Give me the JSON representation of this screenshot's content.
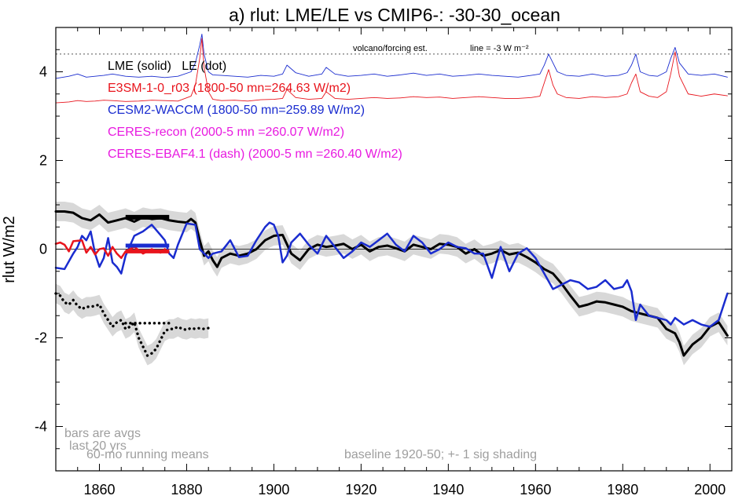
{
  "chart_data": {
    "type": "line",
    "title": "a) rlut: LME/LE vs CMIP6-: -30-30_ocean",
    "ylabel": "rlut W/m2",
    "xlabel": "",
    "xlim": [
      1850,
      2005
    ],
    "ylim": [
      -5,
      5
    ],
    "x_ticks": [
      1860,
      1880,
      1900,
      1920,
      1940,
      1960,
      1980,
      2000
    ],
    "y_ticks": [
      -4,
      -2,
      0,
      2,
      4
    ],
    "grid": false,
    "zero_line": 0,
    "reference_line": {
      "y": 4.4,
      "label": "volcano/forcing est.",
      "note": "line = -3 W m⁻²"
    },
    "legend": [
      {
        "text": "LME (solid)   LE (dot)",
        "color": "#000000"
      },
      {
        "text": "E3SM-1-0_r03 (1800-50 mn=264.63 W/m2)",
        "color": "#e8141c"
      },
      {
        "text": "CESM2-WACCM (1800-50 mn=259.89 W/m2)",
        "color": "#1a2ccf"
      },
      {
        "text": "CERES-recon (2000-5 mn =260.07 W/m2)",
        "color": "#e81ae0"
      },
      {
        "text": "CERES-EBAF4.1 (dash) (2000-5 mn =260.40 W/m2)",
        "color": "#e81ae0"
      }
    ],
    "annotations": [
      {
        "text": "bars are avgs",
        "color": "#9e9e9e"
      },
      {
        "text": "last 20 yrs",
        "color": "#9e9e9e"
      },
      {
        "text": "60-mo running means",
        "color": "#9e9e9e"
      },
      {
        "text": "baseline 1920-50; +- 1 sig shading",
        "color": "#9e9e9e"
      }
    ],
    "colors": {
      "black": "#000000",
      "red": "#e8141c",
      "blue": "#1a2ccf",
      "shade": "#d8d8d8",
      "annot": "#9e9e9e"
    },
    "series": [
      {
        "key": "forcing_blue",
        "color": "#1a2ccf",
        "width": 0.9,
        "x": [
          1850,
          1853,
          1855,
          1857,
          1859,
          1861,
          1863,
          1866,
          1869,
          1872,
          1875,
          1878,
          1881,
          1882,
          1883,
          1883.5,
          1884,
          1885,
          1886,
          1888,
          1891,
          1894,
          1897,
          1900,
          1902,
          1903,
          1905,
          1908,
          1911,
          1912,
          1914,
          1917,
          1920,
          1923,
          1926,
          1929,
          1932,
          1935,
          1938,
          1941,
          1944,
          1947,
          1950,
          1953,
          1956,
          1959,
          1961,
          1962,
          1963,
          1964,
          1965,
          1967,
          1970,
          1973,
          1976,
          1979,
          1981,
          1982,
          1983,
          1984,
          1986,
          1988,
          1990,
          1991,
          1992,
          1993,
          1995,
          1998,
          2001,
          2004
        ],
        "y": [
          3.85,
          3.9,
          3.95,
          3.88,
          3.9,
          3.92,
          3.95,
          3.9,
          3.88,
          3.9,
          3.87,
          3.9,
          4.0,
          4.2,
          4.6,
          4.85,
          4.4,
          4.0,
          3.93,
          3.92,
          3.9,
          3.88,
          3.92,
          3.9,
          3.95,
          4.15,
          3.98,
          3.9,
          3.95,
          4.1,
          3.95,
          3.9,
          3.92,
          3.95,
          3.9,
          3.93,
          3.97,
          3.92,
          3.95,
          3.9,
          3.92,
          3.95,
          3.92,
          3.9,
          3.88,
          3.92,
          3.95,
          4.15,
          4.4,
          4.2,
          4.0,
          3.92,
          3.9,
          3.95,
          3.9,
          3.92,
          3.98,
          4.15,
          4.4,
          4.0,
          3.92,
          3.9,
          4.0,
          4.3,
          4.55,
          4.2,
          3.95,
          3.92,
          3.95,
          3.88
        ]
      },
      {
        "key": "forcing_red",
        "color": "#e8141c",
        "width": 0.9,
        "x": [
          1850,
          1853,
          1855,
          1857,
          1859,
          1861,
          1863,
          1866,
          1869,
          1872,
          1875,
          1878,
          1881,
          1882,
          1883,
          1883.5,
          1884,
          1885,
          1886,
          1888,
          1891,
          1894,
          1897,
          1900,
          1902,
          1903,
          1905,
          1908,
          1911,
          1912,
          1914,
          1917,
          1920,
          1923,
          1926,
          1929,
          1932,
          1935,
          1938,
          1941,
          1944,
          1947,
          1950,
          1953,
          1956,
          1959,
          1961,
          1962,
          1963,
          1964,
          1965,
          1967,
          1970,
          1973,
          1976,
          1979,
          1981,
          1982,
          1983,
          1984,
          1986,
          1988,
          1990,
          1991,
          1992,
          1993,
          1995,
          1998,
          2001,
          2004
        ],
        "y": [
          3.3,
          3.32,
          3.35,
          3.33,
          3.34,
          3.36,
          3.35,
          3.33,
          3.34,
          3.36,
          3.35,
          3.34,
          3.45,
          3.7,
          4.3,
          4.75,
          4.1,
          3.55,
          3.38,
          3.35,
          3.36,
          3.34,
          3.37,
          3.38,
          3.4,
          3.6,
          3.42,
          3.38,
          3.4,
          3.55,
          3.4,
          3.38,
          3.4,
          3.42,
          3.4,
          3.41,
          3.44,
          3.42,
          3.43,
          3.4,
          3.42,
          3.44,
          3.42,
          3.4,
          3.4,
          3.42,
          3.45,
          3.75,
          4.05,
          3.7,
          3.5,
          3.42,
          3.4,
          3.44,
          3.42,
          3.44,
          3.5,
          3.75,
          3.95,
          3.55,
          3.45,
          3.42,
          3.55,
          3.95,
          4.45,
          3.9,
          3.5,
          3.45,
          3.5,
          3.46
        ]
      },
      {
        "key": "LME_black",
        "color": "#000000",
        "width": 3,
        "shade": 0.22,
        "x": [
          1850,
          1852,
          1854,
          1856,
          1858,
          1860,
          1862,
          1864,
          1866,
          1868,
          1870,
          1872,
          1874,
          1876,
          1878,
          1880,
          1881,
          1882,
          1883,
          1884,
          1885,
          1886,
          1887,
          1888,
          1890,
          1892,
          1894,
          1896,
          1898,
          1900,
          1902,
          1904,
          1906,
          1908,
          1910,
          1912,
          1914,
          1916,
          1918,
          1920,
          1922,
          1924,
          1926,
          1928,
          1930,
          1932,
          1934,
          1936,
          1938,
          1940,
          1942,
          1944,
          1946,
          1948,
          1950,
          1952,
          1954,
          1956,
          1958,
          1960,
          1962,
          1964,
          1966,
          1968,
          1970,
          1972,
          1974,
          1976,
          1978,
          1980,
          1982,
          1984,
          1986,
          1988,
          1990,
          1992,
          1993,
          1994,
          1996,
          1998,
          2000,
          2002,
          2004
        ],
        "y": [
          0.85,
          0.85,
          0.82,
          0.7,
          0.65,
          0.78,
          0.6,
          0.65,
          0.7,
          0.62,
          0.72,
          0.68,
          0.7,
          0.65,
          0.62,
          0.6,
          0.68,
          0.6,
          0.2,
          -0.15,
          -0.05,
          -0.25,
          -0.4,
          -0.2,
          -0.1,
          -0.15,
          -0.1,
          0.0,
          0.2,
          0.3,
          0.32,
          -0.1,
          -0.25,
          0.0,
          0.1,
          0.05,
          0.08,
          0.12,
          0.0,
          0.1,
          -0.05,
          0.05,
          0.08,
          0.02,
          -0.05,
          0.1,
          0.05,
          0.0,
          0.12,
          0.1,
          0.05,
          -0.1,
          0.0,
          -0.15,
          -0.1,
          -0.02,
          -0.12,
          -0.08,
          -0.18,
          -0.3,
          -0.45,
          -0.55,
          -0.78,
          -1.05,
          -1.3,
          -1.25,
          -1.18,
          -1.2,
          -1.25,
          -1.3,
          -1.4,
          -1.45,
          -1.5,
          -1.55,
          -1.8,
          -1.9,
          -2.1,
          -2.4,
          -2.15,
          -2.0,
          -1.75,
          -1.65,
          -1.95
        ]
      },
      {
        "key": "CESM2_blue",
        "color": "#1a2ccf",
        "width": 2.5,
        "x": [
          1850,
          1852,
          1854,
          1855,
          1856,
          1857,
          1858,
          1859,
          1860,
          1861,
          1862,
          1863,
          1864,
          1865,
          1866,
          1868,
          1870,
          1872,
          1874,
          1875,
          1876,
          1877,
          1878,
          1880,
          1882,
          1883,
          1884,
          1885,
          1886,
          1888,
          1890,
          1892,
          1894,
          1896,
          1898,
          1899,
          1900,
          1901,
          1902,
          1903,
          1904,
          1906,
          1908,
          1910,
          1912,
          1914,
          1916,
          1918,
          1920,
          1922,
          1924,
          1926,
          1928,
          1930,
          1932,
          1934,
          1936,
          1938,
          1940,
          1942,
          1944,
          1946,
          1948,
          1950,
          1952,
          1954,
          1956,
          1958,
          1960,
          1962,
          1964,
          1966,
          1968,
          1970,
          1972,
          1974,
          1976,
          1978,
          1980,
          1981,
          1982,
          1983,
          1984,
          1986,
          1988,
          1990,
          1991,
          1992,
          1994,
          1996,
          1998,
          2000,
          2002,
          2004
        ],
        "y": [
          -0.42,
          -0.45,
          -0.1,
          0.05,
          0.3,
          0.2,
          0.4,
          -0.1,
          -0.4,
          -0.2,
          0.25,
          -0.3,
          -0.4,
          -0.55,
          -0.15,
          0.3,
          0.4,
          0.55,
          0.32,
          0.2,
          -0.1,
          -0.2,
          0.1,
          0.58,
          0.55,
          0.0,
          -0.1,
          -0.2,
          -0.1,
          -0.05,
          0.2,
          -0.18,
          -0.15,
          0.2,
          0.5,
          0.6,
          0.55,
          0.3,
          -0.3,
          -0.15,
          0.15,
          0.35,
          0.1,
          -0.1,
          0.3,
          0.05,
          -0.2,
          -0.05,
          0.15,
          0.05,
          0.2,
          0.35,
          0.1,
          -0.05,
          0.3,
          0.15,
          -0.1,
          0.0,
          0.15,
          0.05,
          0.02,
          -0.1,
          -0.1,
          -0.65,
          0.05,
          -0.5,
          -0.1,
          0.02,
          -0.2,
          -0.55,
          -0.9,
          -0.8,
          -0.7,
          -0.75,
          -0.9,
          -0.85,
          -0.7,
          -0.9,
          -0.85,
          -0.7,
          -0.95,
          -1.6,
          -1.25,
          -1.5,
          -1.55,
          -1.6,
          -1.7,
          -1.55,
          -1.7,
          -1.6,
          -1.7,
          -1.75,
          -1.6,
          -1.0
        ]
      },
      {
        "key": "E3SM_red",
        "color": "#e8141c",
        "width": 2.5,
        "x": [
          1850,
          1851,
          1852,
          1853,
          1854,
          1856,
          1857,
          1858,
          1859,
          1860,
          1861,
          1862,
          1863,
          1864,
          1865,
          1866,
          1868,
          1870,
          1872,
          1874,
          1875
        ],
        "y": [
          0.12,
          0.15,
          0.1,
          -0.05,
          0.18,
          0.2,
          -0.08,
          0.05,
          -0.12,
          0.0,
          0.02,
          -0.15,
          0.05,
          -0.1,
          -0.2,
          -0.05,
          0.05,
          -0.1,
          0.0,
          -0.08,
          0.0
        ]
      },
      {
        "key": "LE_dotted",
        "color": "#000000",
        "width": 3,
        "dotted": true,
        "shade": 0.22,
        "x": [
          1850,
          1851,
          1852,
          1853,
          1854,
          1855,
          1856,
          1857,
          1858,
          1859,
          1860,
          1861,
          1862,
          1863,
          1864,
          1865,
          1866,
          1867,
          1868,
          1869,
          1870,
          1871,
          1872,
          1873,
          1874,
          1875,
          1876,
          1877,
          1878,
          1879,
          1880,
          1881,
          1882,
          1883,
          1884,
          1885
        ],
        "y": [
          -1.0,
          -1.05,
          -1.2,
          -1.25,
          -1.15,
          -1.28,
          -1.35,
          -1.3,
          -1.3,
          -1.28,
          -1.25,
          -1.45,
          -1.6,
          -1.75,
          -1.65,
          -1.6,
          -1.8,
          -1.75,
          -1.65,
          -2.0,
          -2.2,
          -2.4,
          -2.35,
          -2.25,
          -2.05,
          -1.85,
          -1.8,
          -1.8,
          -1.75,
          -1.8,
          -1.82,
          -1.78,
          -1.8,
          -1.78,
          -1.8,
          -1.78
        ]
      }
    ],
    "bars": [
      {
        "x": [
          1866,
          1876
        ],
        "y": 0.72,
        "color": "#000000",
        "width": 6
      },
      {
        "x": [
          1866,
          1876
        ],
        "y": 0.08,
        "color": "#1a2ccf",
        "width": 5
      },
      {
        "x": [
          1866,
          1876
        ],
        "y": -0.05,
        "color": "#e8141c",
        "width": 5
      },
      {
        "x": [
          1866,
          1876
        ],
        "y": -1.67,
        "color": "#000000",
        "width": 3,
        "dotted": true
      }
    ]
  }
}
